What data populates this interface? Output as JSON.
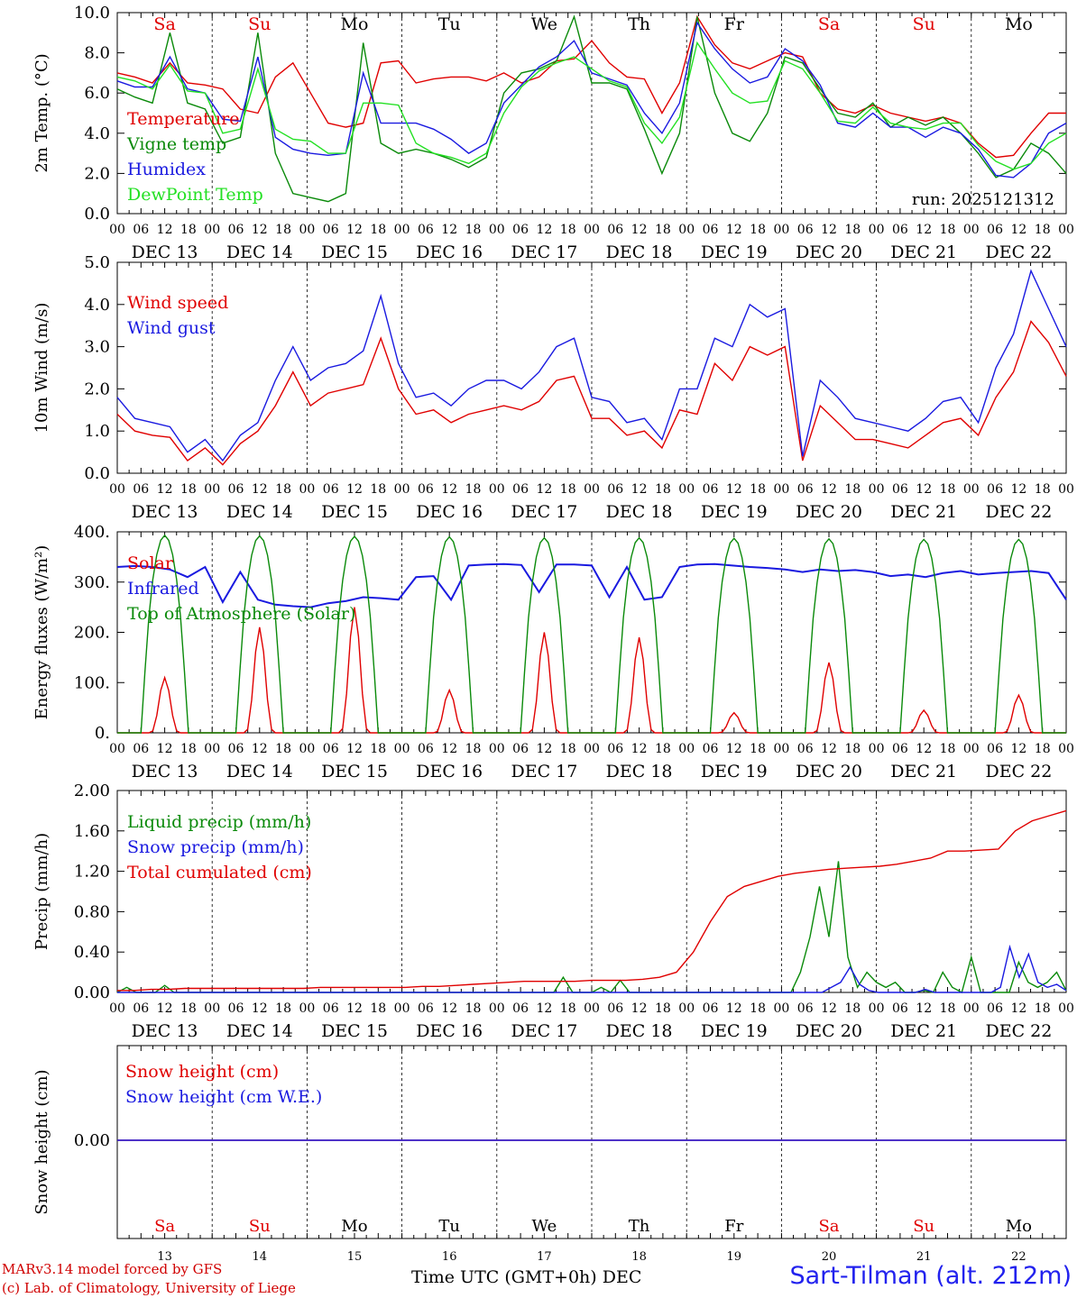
{
  "day_labels": [
    "DEC 13",
    "DEC 14",
    "DEC 15",
    "DEC 16",
    "DEC 17",
    "DEC 18",
    "DEC 19",
    "DEC 20",
    "DEC 21",
    "DEC 22"
  ],
  "hour_ticks": [
    "00",
    "06",
    "12",
    "18"
  ],
  "last_hour_tick": "00",
  "weekdays": [
    {
      "label": "Sa",
      "color": "#e00000"
    },
    {
      "label": "Su",
      "color": "#e00000"
    },
    {
      "label": "Mo",
      "color": "#000000"
    },
    {
      "label": "Tu",
      "color": "#000000"
    },
    {
      "label": "We",
      "color": "#000000"
    },
    {
      "label": "Th",
      "color": "#000000"
    },
    {
      "label": "Fr",
      "color": "#000000"
    },
    {
      "label": "Sa",
      "color": "#e00000"
    },
    {
      "label": "Su",
      "color": "#e00000"
    },
    {
      "label": "Mo",
      "color": "#000000"
    }
  ],
  "bottom_day_numbers": [
    "13",
    "14",
    "15",
    "16",
    "17",
    "18",
    "19",
    "20",
    "21",
    "22"
  ],
  "colors": {
    "red": "#e00000",
    "green": "#0a8a0a",
    "blue": "#1a1ae0",
    "lightgreen": "#22e022"
  },
  "chart_data": [
    {
      "type": "line",
      "ylabel": "2m Temp. (°C)",
      "ylim": [
        0,
        10
      ],
      "yticks": [
        "0.0",
        "2.0",
        "4.0",
        "6.0",
        "8.0",
        "10.0"
      ],
      "annotation": "run: 2025121312",
      "x_hours_step": 6,
      "series": [
        {
          "name": "Temperature",
          "color": "#e00000",
          "values": [
            7.0,
            6.8,
            6.5,
            7.5,
            6.5,
            6.4,
            6.2,
            5.2,
            5.0,
            6.8,
            7.5,
            6.0,
            4.5,
            4.3,
            4.5,
            7.5,
            7.6,
            6.5,
            6.7,
            6.8,
            6.8,
            6.6,
            7.0,
            6.5,
            6.8,
            7.6,
            7.7,
            8.6,
            7.5,
            6.8,
            6.7,
            5.0,
            6.5,
            9.8,
            8.4,
            7.5,
            7.2,
            7.6,
            8.0,
            7.8,
            6.0,
            5.2,
            5.0,
            5.4,
            5.0,
            4.8,
            4.6,
            4.8,
            4.5,
            3.5,
            2.8,
            2.9,
            4.0,
            5.0,
            5.0
          ]
        },
        {
          "name": "Vigne temp",
          "color": "#0a8a0a",
          "values": [
            6.2,
            5.8,
            5.5,
            9.0,
            5.5,
            5.2,
            3.5,
            3.8,
            9.0,
            3.0,
            1.0,
            0.8,
            0.6,
            1.0,
            8.5,
            3.5,
            3.0,
            3.2,
            3.0,
            2.7,
            2.3,
            2.8,
            6.0,
            7.0,
            7.2,
            7.6,
            9.8,
            6.5,
            6.5,
            6.2,
            4.2,
            2.0,
            4.0,
            9.8,
            6.0,
            4.0,
            3.6,
            5.0,
            7.8,
            7.5,
            6.2,
            5.0,
            4.8,
            5.5,
            4.3,
            4.8,
            4.4,
            4.8,
            4.0,
            3.0,
            1.8,
            2.2,
            3.5,
            3.0,
            2.0
          ]
        },
        {
          "name": "Humidex",
          "color": "#1a1ae0",
          "values": [
            6.6,
            6.3,
            6.3,
            7.8,
            6.2,
            6.0,
            4.7,
            4.6,
            7.8,
            3.8,
            3.2,
            3.0,
            2.9,
            3.0,
            7.0,
            4.5,
            4.5,
            4.5,
            4.2,
            3.7,
            3.0,
            3.5,
            5.5,
            6.4,
            7.3,
            7.8,
            8.6,
            7.0,
            6.7,
            6.4,
            5.0,
            4.0,
            5.5,
            9.5,
            8.2,
            7.2,
            6.5,
            6.8,
            8.2,
            7.6,
            6.4,
            4.5,
            4.3,
            5.0,
            4.3,
            4.3,
            3.8,
            4.3,
            4.0,
            3.2,
            1.9,
            1.8,
            2.5,
            4.0,
            4.5
          ]
        },
        {
          "name": "DewPoint Temp",
          "color": "#22e022",
          "values": [
            6.8,
            6.6,
            6.2,
            7.4,
            6.1,
            6.0,
            4.0,
            4.2,
            7.2,
            4.2,
            3.7,
            3.6,
            3.0,
            3.0,
            5.5,
            5.5,
            5.4,
            3.5,
            3.0,
            2.8,
            2.5,
            3.0,
            5.0,
            6.3,
            7.1,
            7.5,
            7.8,
            7.2,
            6.6,
            6.3,
            4.5,
            3.5,
            4.8,
            8.5,
            7.2,
            6.0,
            5.5,
            5.6,
            7.6,
            7.2,
            6.0,
            4.6,
            4.5,
            5.3,
            4.5,
            4.3,
            4.2,
            4.5,
            4.5,
            3.4,
            2.6,
            2.2,
            2.5,
            3.5,
            4.0
          ]
        }
      ],
      "legend": [
        "Temperature",
        "Vigne temp",
        "Humidex",
        "DewPoint Temp"
      ]
    },
    {
      "type": "line",
      "ylabel": "10m Wind (m/s)",
      "ylim": [
        0,
        5
      ],
      "yticks": [
        "0.0",
        "1.0",
        "2.0",
        "3.0",
        "4.0",
        "5.0"
      ],
      "x_hours_step": 6,
      "series": [
        {
          "name": "Wind speed",
          "color": "#e00000",
          "values": [
            1.4,
            1.0,
            0.9,
            0.85,
            0.3,
            0.6,
            0.2,
            0.7,
            1.0,
            1.6,
            2.4,
            1.6,
            1.9,
            2.0,
            2.1,
            3.2,
            2.0,
            1.4,
            1.5,
            1.2,
            1.4,
            1.5,
            1.6,
            1.5,
            1.7,
            2.2,
            2.3,
            1.3,
            1.3,
            0.9,
            1.0,
            0.6,
            1.5,
            1.4,
            2.6,
            2.2,
            3.0,
            2.8,
            3.0,
            0.3,
            1.6,
            1.2,
            0.8,
            0.8,
            0.7,
            0.6,
            0.9,
            1.2,
            1.3,
            0.9,
            1.8,
            2.4,
            3.6,
            3.1,
            2.3
          ]
        },
        {
          "name": "Wind gust",
          "color": "#1a1ae0",
          "values": [
            1.8,
            1.3,
            1.2,
            1.1,
            0.5,
            0.8,
            0.3,
            0.9,
            1.2,
            2.2,
            3.0,
            2.2,
            2.5,
            2.6,
            2.9,
            4.2,
            2.6,
            1.8,
            1.9,
            1.6,
            2.0,
            2.2,
            2.2,
            2.0,
            2.4,
            3.0,
            3.2,
            1.8,
            1.7,
            1.2,
            1.3,
            0.8,
            2.0,
            2.0,
            3.2,
            3.0,
            4.0,
            3.7,
            3.9,
            0.4,
            2.2,
            1.8,
            1.3,
            1.2,
            1.1,
            1.0,
            1.3,
            1.7,
            1.8,
            1.2,
            2.5,
            3.3,
            4.8,
            3.9,
            3.0
          ]
        }
      ],
      "legend": [
        "Wind speed",
        "Wind gust"
      ]
    },
    {
      "type": "line",
      "ylabel": "Energy fluxes (W/m²)",
      "ylim": [
        0,
        400
      ],
      "yticks": [
        "0.",
        "100.",
        "200.",
        "300.",
        "400."
      ],
      "x_hours_step": 2,
      "series": [
        {
          "name": "Solar",
          "color": "#e00000",
          "peaks": [
            110,
            210,
            250,
            85,
            200,
            190,
            40,
            140,
            45,
            75
          ]
        },
        {
          "name": "Infrared",
          "color": "#1a1ae0",
          "values": [
            330,
            332,
            330,
            325,
            310,
            330,
            260,
            320,
            265,
            255,
            252,
            250,
            258,
            262,
            270,
            268,
            265,
            310,
            312,
            265,
            333,
            335,
            336,
            334,
            280,
            335,
            335,
            333,
            270,
            330,
            265,
            270,
            330,
            335,
            336,
            333,
            330,
            328,
            325,
            320,
            325,
            322,
            324,
            320,
            312,
            315,
            310,
            318,
            322,
            315,
            318,
            320,
            322,
            318,
            265
          ]
        },
        {
          "name": "Top of Atmosphere (Solar)",
          "color": "#0a8a0a",
          "peaks": [
            393,
            392,
            391,
            390,
            388,
            388,
            387,
            386,
            385,
            385
          ]
        }
      ],
      "legend": [
        "Solar",
        "Infrared",
        "Top of Atmosphere (Solar)"
      ]
    },
    {
      "type": "line",
      "ylabel": "Precip (mm/h)",
      "ylim": [
        0,
        2
      ],
      "yticks": [
        "0.00",
        "0.40",
        "0.80",
        "1.20",
        "1.60",
        "2.00"
      ],
      "x_hours_step": 3,
      "series": [
        {
          "name": "Liquid precip (mm/h)",
          "color": "#0a8a0a",
          "values": [
            0,
            0.05,
            0,
            0,
            0,
            0.07,
            0,
            0,
            0,
            0,
            0,
            0,
            0,
            0,
            0,
            0,
            0,
            0,
            0,
            0,
            0,
            0,
            0,
            0,
            0,
            0,
            0,
            0,
            0,
            0,
            0,
            0,
            0,
            0,
            0,
            0,
            0,
            0,
            0,
            0,
            0,
            0,
            0,
            0,
            0,
            0,
            0,
            0.15,
            0,
            0,
            0,
            0.05,
            0,
            0.12,
            0,
            0,
            0,
            0,
            0,
            0,
            0,
            0,
            0,
            0,
            0,
            0,
            0,
            0,
            0,
            0,
            0,
            0,
            0.2,
            0.55,
            1.05,
            0.55,
            1.3,
            0.35,
            0.05,
            0.2,
            0.1,
            0.05,
            0.1,
            0,
            0,
            0.02,
            0,
            0.2,
            0.05,
            0,
            0.35,
            0,
            0,
            0,
            0,
            0.3,
            0.1,
            0.05,
            0.1,
            0.2,
            0.02
          ]
        },
        {
          "name": "Snow precip (mm/h)",
          "color": "#1a1ae0",
          "values": [
            0,
            0,
            0,
            0,
            0,
            0,
            0,
            0,
            0,
            0,
            0,
            0,
            0,
            0,
            0,
            0,
            0,
            0,
            0,
            0,
            0,
            0,
            0,
            0,
            0,
            0,
            0,
            0,
            0,
            0,
            0,
            0,
            0,
            0,
            0,
            0,
            0,
            0,
            0,
            0,
            0,
            0,
            0,
            0,
            0,
            0,
            0,
            0,
            0,
            0,
            0,
            0,
            0,
            0,
            0,
            0,
            0,
            0,
            0,
            0,
            0,
            0,
            0,
            0,
            0,
            0,
            0,
            0,
            0,
            0,
            0,
            0,
            0,
            0,
            0,
            0,
            0.05,
            0.1,
            0.25,
            0.08,
            0.02,
            0,
            0,
            0,
            0,
            0,
            0.03,
            0,
            0,
            0,
            0,
            0,
            0,
            0,
            0.05,
            0.45,
            0.15,
            0.38,
            0.1,
            0.05,
            0.08,
            0.02
          ]
        },
        {
          "name": "Total cumulated (cm)",
          "color": "#e00000",
          "values": [
            0.02,
            0.02,
            0.03,
            0.03,
            0.04,
            0.04,
            0.04,
            0.04,
            0.04,
            0.04,
            0.04,
            0.04,
            0.05,
            0.05,
            0.05,
            0.05,
            0.05,
            0.05,
            0.06,
            0.06,
            0.07,
            0.08,
            0.09,
            0.1,
            0.11,
            0.11,
            0.11,
            0.11,
            0.12,
            0.12,
            0.12,
            0.13,
            0.15,
            0.2,
            0.4,
            0.7,
            0.95,
            1.05,
            1.1,
            1.15,
            1.18,
            1.2,
            1.22,
            1.23,
            1.24,
            1.25,
            1.27,
            1.3,
            1.33,
            1.4,
            1.4,
            1.41,
            1.42,
            1.6,
            1.7,
            1.75,
            1.8
          ]
        }
      ],
      "legend": [
        "Liquid precip (mm/h)",
        "Snow precip (mm/h)",
        "Total cumulated (cm)"
      ]
    },
    {
      "type": "line",
      "ylabel": "Snow height (cm)",
      "yticks": [
        "0.00"
      ],
      "series": [
        {
          "name": "Snow height (cm)",
          "color": "#e00000",
          "values": [
            0,
            0
          ]
        },
        {
          "name": "Snow height (cm W.E.)",
          "color": "#1a1ae0",
          "values": [
            0,
            0
          ]
        }
      ],
      "legend": [
        "Snow height (cm)",
        "Snow height (cm W.E.)"
      ]
    }
  ],
  "footer": {
    "model_line1": "MARv3.14 model forced by GFS",
    "model_line2": "(c) Lab. of Climatology, University of Liege",
    "xaxis_title": "Time UTC (GMT+0h) DEC",
    "station": "Sart-Tilman (alt. 212m)"
  }
}
